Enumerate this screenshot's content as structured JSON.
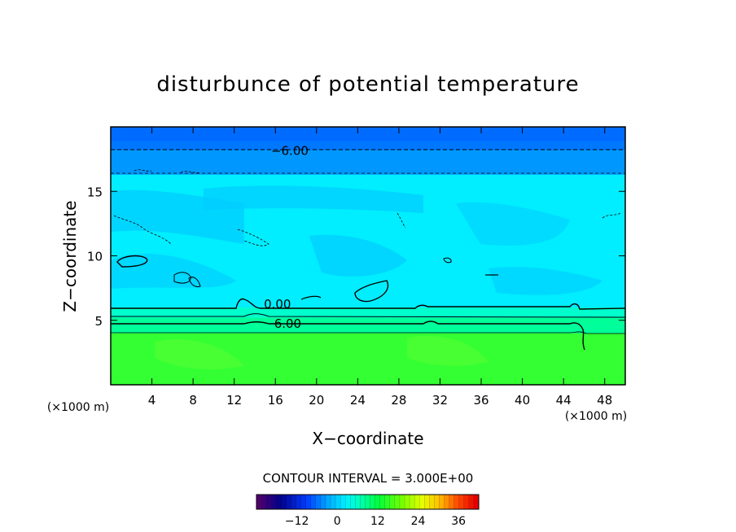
{
  "chart_data": {
    "type": "heatmap",
    "title": "disturbunce of potential temperature",
    "xlabel": "X−coordinate",
    "ylabel": "Z−coordinate",
    "x_unit": "(×1000 m)",
    "z_unit": "(×1000 m)",
    "xlim": [
      0,
      50
    ],
    "ylim": [
      0,
      20
    ],
    "x_ticks": [
      4,
      8,
      12,
      16,
      20,
      24,
      28,
      32,
      36,
      40,
      44,
      48
    ],
    "y_ticks": [
      5,
      10,
      15
    ],
    "contour_interval_label": "CONTOUR INTERVAL = 3.000E+00",
    "contour_interval": 3.0,
    "contour_labels": [
      {
        "text": "−6.00",
        "x": 17.4,
        "z": 18.2
      },
      {
        "text": "0.00",
        "x": 16.2,
        "z": 6.3
      },
      {
        "text": "6.00",
        "x": 17.2,
        "z": 4.8
      }
    ],
    "colorbar": {
      "ticks": [
        -12,
        0,
        12,
        24,
        36
      ],
      "range": [
        -24,
        42
      ]
    },
    "bands": [
      {
        "z_from": 0,
        "z_to": 4.0,
        "value": 12
      },
      {
        "z_from": 4.0,
        "z_to": 4.5,
        "value": 9
      },
      {
        "z_from": 4.5,
        "z_to": 5.2,
        "value": 6
      },
      {
        "z_from": 5.2,
        "z_to": 6.0,
        "value": 3
      },
      {
        "z_from": 6.0,
        "z_to": 16.3,
        "value": -3
      },
      {
        "z_from": 16.3,
        "z_to": 18.2,
        "value": -6
      },
      {
        "z_from": 18.2,
        "z_to": 20,
        "value": -9
      }
    ],
    "colors": {
      "upper_blue": "#0066ff",
      "mid_blue": "#0099ff",
      "cyan_light": "#00ccff",
      "cyan": "#00eeff",
      "teal": "#00ffcc",
      "green_teal": "#00ff99",
      "green": "#33ff33"
    }
  }
}
